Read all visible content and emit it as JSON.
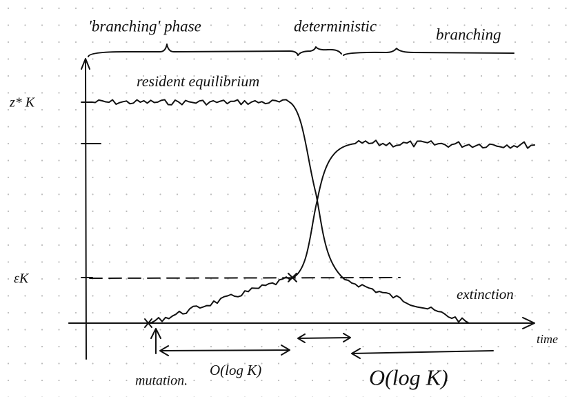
{
  "header": {
    "phases": [
      "'branching' phase",
      "deterministic",
      "branching"
    ]
  },
  "labels": {
    "resident": "resident equilibrium",
    "y_high": "z* K",
    "y_low": "εK",
    "extinction": "extinction",
    "x_axis": "time",
    "mutation": "mutation.",
    "duration_first": "O(log K)",
    "duration_last": "O(log K)"
  }
}
